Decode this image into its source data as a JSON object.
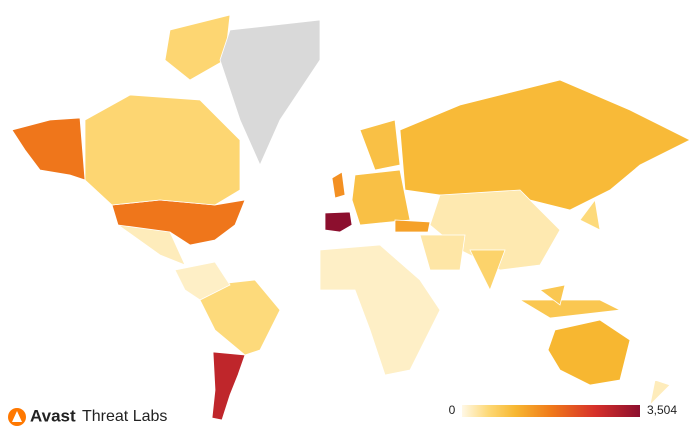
{
  "brand": {
    "name": "Avast",
    "product": "Threat Labs"
  },
  "map": {
    "legend": {
      "min": 0,
      "max": {
        "value": 3504,
        "label": "3,504"
      }
    },
    "values": [
      3504,
      2900,
      1800,
      1700,
      1500,
      1000,
      1050,
      550,
      500,
      null,
      150,
      900,
      250,
      600,
      1300,
      200,
      150,
      800,
      300,
      500,
      200
    ]
  }
}
